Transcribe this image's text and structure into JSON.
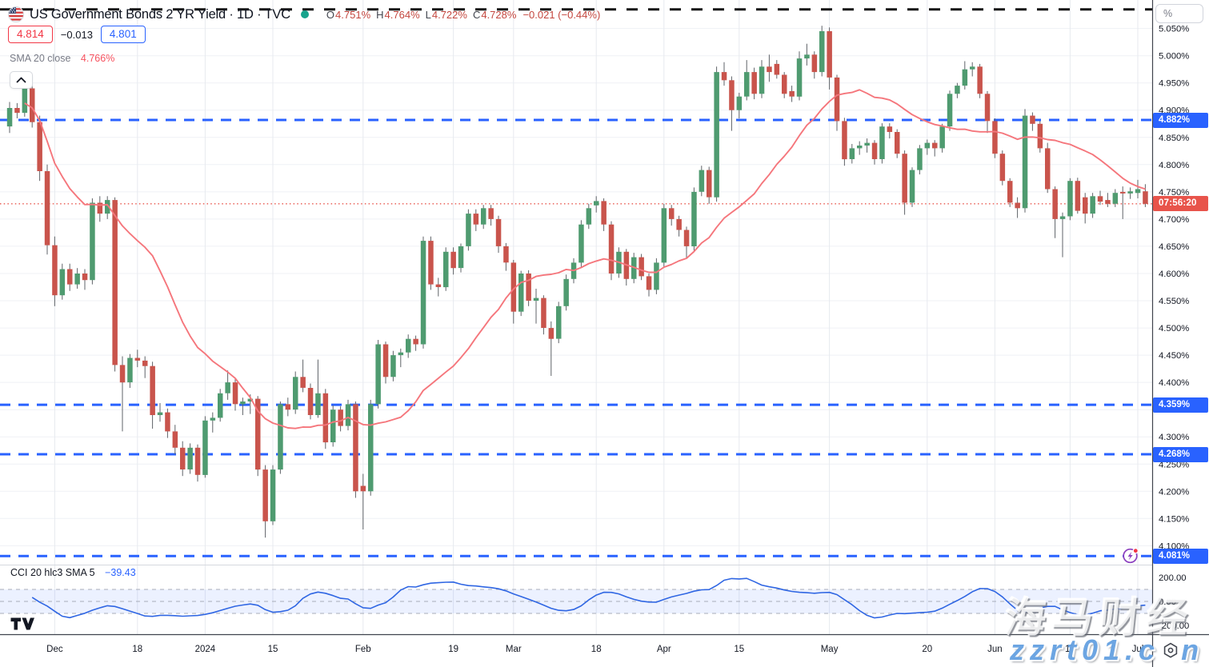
{
  "header": {
    "symbol_title": "US Government Bonds 2 YR Yield · 1D · TVC",
    "status_dot_color": "#18A38C",
    "ohlc": {
      "o_label": "O",
      "o_value": "4.751%",
      "h_label": "H",
      "h_value": "4.764%",
      "l_label": "L",
      "l_value": "4.722%",
      "c_label": "C",
      "c_value": "4.728%",
      "change": "−0.021 (−0.44%)"
    },
    "bid": "4.814",
    "bid_change": "−0.013",
    "ask": "4.801",
    "sma_legend": {
      "name": "SMA 20 close",
      "value": "4.766%"
    }
  },
  "cci_legend": {
    "name": "CCI 20 hlc3 SMA 5",
    "value": "−39.43"
  },
  "axis": {
    "unit_button": "%",
    "price_ticks": [
      "5.050%",
      "5.000%",
      "4.950%",
      "4.900%",
      "4.850%",
      "4.800%",
      "4.750%",
      "4.700%",
      "4.650%",
      "4.600%",
      "4.550%",
      "4.500%",
      "4.450%",
      "4.400%",
      "4.350%",
      "4.300%",
      "4.250%",
      "4.200%",
      "4.150%",
      "4.100%"
    ],
    "countdown": {
      "text": "07:56:20",
      "price": 4.728,
      "color": "#E8544B"
    }
  },
  "watermark": {
    "line1": "海马财经",
    "line2_prefix": "zzrt01.c",
    "line2_suffix": "n"
  },
  "colors": {
    "up": "#4F9B70",
    "down": "#C9544C",
    "wick": "#5F6368",
    "sma": "#F5767C",
    "cci": "#2F66E3",
    "level_blue": "#2962FF",
    "black_level": "#151515",
    "price_dotted": "#E8544B",
    "grid_h": "#EFF1F5",
    "grid_v": "#E7EAEF",
    "axis_border": "#3F434D",
    "pane_sep": "#D5D8DF",
    "axis_text": "#131722",
    "band_fill": "rgba(41,98,255,0.09)",
    "band_line": "#A9ADB8",
    "badge_blue": "#2962FF",
    "badge_countdown": "#E8544B"
  },
  "chart_data": {
    "type": "candlestick",
    "title": "US Government Bonds 2 YR Yield",
    "interval": "1D",
    "exchange": "TVC",
    "unit": "percent_yield",
    "visible_price_range": [
      4.08,
      5.09
    ],
    "levels": {
      "blue_dashed": [
        {
          "label": "4.882%",
          "value": 4.882
        },
        {
          "label": "4.359%",
          "value": 4.359
        },
        {
          "label": "4.268%",
          "value": 4.268
        },
        {
          "label": "4.081%",
          "value": 4.081
        }
      ],
      "black_dashed": 5.085,
      "current_price_dotted": 4.728
    },
    "overlays": [
      {
        "name": "SMA 20 close",
        "period": 20,
        "last_value": 4.766
      }
    ],
    "lower_pane": {
      "name": "CCI 20 hlc3 SMA 5",
      "cci_period": 20,
      "source": "hlc3",
      "smoothing": 5,
      "band": [
        -100,
        100
      ],
      "last_value": -39.43,
      "axis_ticks": [
        {
          "label": "200.00",
          "value": 200
        },
        {
          "label": "0.00",
          "value": 0
        },
        {
          "label": "-200.00",
          "value": -200
        }
      ]
    },
    "time_ticks": [
      {
        "i": 6,
        "label": "Dec"
      },
      {
        "i": 17,
        "label": "18"
      },
      {
        "i": 26,
        "label": "2024"
      },
      {
        "i": 35,
        "label": "15"
      },
      {
        "i": 47,
        "label": "Feb"
      },
      {
        "i": 59,
        "label": "19"
      },
      {
        "i": 67,
        "label": "Mar"
      },
      {
        "i": 78,
        "label": "18"
      },
      {
        "i": 87,
        "label": "Apr"
      },
      {
        "i": 97,
        "label": "15"
      },
      {
        "i": 109,
        "label": "May"
      },
      {
        "i": 122,
        "label": "20"
      },
      {
        "i": 131,
        "label": "Jun"
      },
      {
        "i": 141,
        "label": "17"
      },
      {
        "i": 150,
        "label": "Jul"
      }
    ],
    "candles": [
      [
        4.87,
        4.915,
        4.858,
        4.904
      ],
      [
        4.904,
        4.913,
        4.885,
        4.895
      ],
      [
        4.895,
        4.952,
        4.888,
        4.94
      ],
      [
        4.94,
        4.949,
        4.868,
        4.878
      ],
      [
        4.878,
        4.89,
        4.77,
        4.788
      ],
      [
        4.788,
        4.8,
        4.635,
        4.652
      ],
      [
        4.652,
        4.668,
        4.54,
        4.56
      ],
      [
        4.56,
        4.618,
        4.552,
        4.608
      ],
      [
        4.608,
        4.618,
        4.568,
        4.58
      ],
      [
        4.58,
        4.61,
        4.572,
        4.6
      ],
      [
        4.6,
        4.608,
        4.57,
        4.588
      ],
      [
        4.588,
        4.738,
        4.58,
        4.73
      ],
      [
        4.73,
        4.742,
        4.695,
        4.71
      ],
      [
        4.71,
        4.742,
        4.7,
        4.735
      ],
      [
        4.735,
        4.74,
        4.42,
        4.432
      ],
      [
        4.432,
        4.448,
        4.31,
        4.4
      ],
      [
        4.4,
        4.452,
        4.39,
        4.445
      ],
      [
        4.445,
        4.46,
        4.428,
        4.44
      ],
      [
        4.44,
        4.448,
        4.408,
        4.43
      ],
      [
        4.43,
        4.438,
        4.315,
        4.34
      ],
      [
        4.34,
        4.362,
        4.328,
        4.345
      ],
      [
        4.345,
        4.352,
        4.298,
        4.31
      ],
      [
        4.31,
        4.322,
        4.268,
        4.28
      ],
      [
        4.28,
        4.292,
        4.228,
        4.24
      ],
      [
        4.24,
        4.288,
        4.232,
        4.28
      ],
      [
        4.28,
        4.286,
        4.218,
        4.23
      ],
      [
        4.23,
        4.338,
        4.225,
        4.33
      ],
      [
        4.33,
        4.345,
        4.308,
        4.335
      ],
      [
        4.335,
        4.388,
        4.328,
        4.38
      ],
      [
        4.38,
        4.422,
        4.368,
        4.4
      ],
      [
        4.4,
        4.408,
        4.348,
        4.36
      ],
      [
        4.36,
        4.372,
        4.34,
        4.365
      ],
      [
        4.365,
        4.378,
        4.342,
        4.37
      ],
      [
        4.37,
        4.375,
        4.228,
        4.24
      ],
      [
        4.24,
        4.248,
        4.115,
        4.145
      ],
      [
        4.145,
        4.248,
        4.138,
        4.24
      ],
      [
        4.24,
        4.365,
        4.232,
        4.36
      ],
      [
        4.36,
        4.372,
        4.338,
        4.35
      ],
      [
        4.35,
        4.42,
        4.342,
        4.41
      ],
      [
        4.41,
        4.442,
        4.382,
        4.39
      ],
      [
        4.39,
        4.398,
        4.332,
        4.34
      ],
      [
        4.34,
        4.442,
        4.335,
        4.38
      ],
      [
        4.38,
        4.388,
        4.278,
        4.29
      ],
      [
        4.29,
        4.358,
        4.282,
        4.35
      ],
      [
        4.35,
        4.356,
        4.31,
        4.32
      ],
      [
        4.32,
        4.368,
        4.312,
        4.36
      ],
      [
        4.36,
        4.365,
        4.188,
        4.2
      ],
      [
        4.21,
        4.232,
        4.13,
        4.2
      ],
      [
        4.2,
        4.368,
        4.192,
        4.36
      ],
      [
        4.36,
        4.478,
        4.352,
        4.47
      ],
      [
        4.47,
        4.475,
        4.398,
        4.41
      ],
      [
        4.41,
        4.458,
        4.402,
        4.45
      ],
      [
        4.45,
        4.462,
        4.428,
        4.455
      ],
      [
        4.455,
        4.488,
        4.445,
        4.48
      ],
      [
        4.48,
        4.486,
        4.458,
        4.47
      ],
      [
        4.47,
        4.668,
        4.462,
        4.66
      ],
      [
        4.66,
        4.668,
        4.57,
        4.58
      ],
      [
        4.58,
        4.592,
        4.558,
        4.575
      ],
      [
        4.575,
        4.648,
        4.568,
        4.64
      ],
      [
        4.64,
        4.648,
        4.598,
        4.61
      ],
      [
        4.61,
        4.655,
        4.602,
        4.65
      ],
      [
        4.65,
        4.718,
        4.642,
        4.71
      ],
      [
        4.71,
        4.718,
        4.678,
        4.69
      ],
      [
        4.69,
        4.726,
        4.682,
        4.72
      ],
      [
        4.72,
        4.726,
        4.688,
        4.7
      ],
      [
        4.7,
        4.706,
        4.638,
        4.65
      ],
      [
        4.65,
        4.656,
        4.605,
        4.62
      ],
      [
        4.62,
        4.625,
        4.508,
        4.53
      ],
      [
        4.53,
        4.605,
        4.522,
        4.6
      ],
      [
        4.6,
        4.606,
        4.54,
        4.55
      ],
      [
        4.55,
        4.572,
        4.508,
        4.555
      ],
      [
        4.555,
        4.56,
        4.488,
        4.5
      ],
      [
        4.5,
        4.512,
        4.412,
        4.48
      ],
      [
        4.48,
        4.548,
        4.472,
        4.54
      ],
      [
        4.54,
        4.598,
        4.532,
        4.59
      ],
      [
        4.59,
        4.628,
        4.582,
        4.62
      ],
      [
        4.62,
        4.698,
        4.612,
        4.69
      ],
      [
        4.69,
        4.728,
        4.682,
        4.72
      ],
      [
        4.725,
        4.742,
        4.712,
        4.733
      ],
      [
        4.733,
        4.738,
        4.678,
        4.69
      ],
      [
        4.69,
        4.696,
        4.588,
        4.6
      ],
      [
        4.6,
        4.648,
        4.592,
        4.64
      ],
      [
        4.64,
        4.645,
        4.578,
        4.59
      ],
      [
        4.59,
        4.638,
        4.582,
        4.63
      ],
      [
        4.63,
        4.636,
        4.588,
        4.595
      ],
      [
        4.595,
        4.6,
        4.558,
        4.57
      ],
      [
        4.57,
        4.628,
        4.562,
        4.62
      ],
      [
        4.62,
        4.728,
        4.612,
        4.72
      ],
      [
        4.72,
        4.726,
        4.688,
        4.7
      ],
      [
        4.7,
        4.706,
        4.668,
        4.68
      ],
      [
        4.68,
        4.686,
        4.628,
        4.65
      ],
      [
        4.65,
        4.758,
        4.642,
        4.75
      ],
      [
        4.75,
        4.798,
        4.742,
        4.79
      ],
      [
        4.79,
        4.796,
        4.728,
        4.74
      ],
      [
        4.74,
        4.98,
        4.732,
        4.97
      ],
      [
        4.97,
        4.988,
        4.945,
        4.955
      ],
      [
        4.955,
        4.962,
        4.862,
        4.9
      ],
      [
        4.9,
        4.932,
        4.885,
        4.925
      ],
      [
        4.925,
        4.992,
        4.918,
        4.97
      ],
      [
        4.97,
        4.978,
        4.92,
        4.93
      ],
      [
        4.93,
        4.992,
        4.922,
        4.98
      ],
      [
        4.98,
        5.002,
        4.952,
        4.97
      ],
      [
        4.985,
        4.992,
        4.958,
        4.965
      ],
      [
        4.965,
        4.97,
        4.922,
        4.93
      ],
      [
        4.935,
        4.945,
        4.915,
        4.925
      ],
      [
        4.925,
        5.008,
        4.918,
        4.995
      ],
      [
        4.995,
        5.022,
        4.982,
        5.002
      ],
      [
        5.002,
        5.008,
        4.958,
        4.97
      ],
      [
        4.97,
        5.055,
        4.962,
        5.045
      ],
      [
        5.045,
        5.052,
        4.938,
        4.96
      ],
      [
        4.96,
        4.965,
        4.862,
        4.88
      ],
      [
        4.88,
        4.886,
        4.798,
        4.81
      ],
      [
        4.81,
        4.838,
        4.802,
        4.83
      ],
      [
        4.83,
        4.843,
        4.818,
        4.835
      ],
      [
        4.835,
        4.848,
        4.822,
        4.84
      ],
      [
        4.84,
        4.845,
        4.8,
        4.81
      ],
      [
        4.81,
        4.876,
        4.802,
        4.87
      ],
      [
        4.87,
        4.876,
        4.848,
        4.86
      ],
      [
        4.86,
        4.865,
        4.812,
        4.82
      ],
      [
        4.82,
        4.826,
        4.708,
        4.73
      ],
      [
        4.73,
        4.795,
        4.722,
        4.79
      ],
      [
        4.79,
        4.836,
        4.782,
        4.83
      ],
      [
        4.83,
        4.846,
        4.818,
        4.84
      ],
      [
        4.84,
        4.845,
        4.815,
        4.83
      ],
      [
        4.83,
        4.875,
        4.822,
        4.87
      ],
      [
        4.87,
        4.936,
        4.862,
        4.93
      ],
      [
        4.93,
        4.95,
        4.922,
        4.945
      ],
      [
        4.945,
        4.99,
        4.938,
        4.975
      ],
      [
        4.975,
        4.988,
        4.962,
        4.98
      ],
      [
        4.98,
        4.985,
        4.922,
        4.93
      ],
      [
        4.93,
        4.935,
        4.858,
        4.88
      ],
      [
        4.88,
        4.885,
        4.812,
        4.82
      ],
      [
        4.82,
        4.826,
        4.762,
        4.77
      ],
      [
        4.77,
        4.775,
        4.722,
        4.73
      ],
      [
        4.73,
        4.74,
        4.702,
        4.72
      ],
      [
        4.72,
        4.902,
        4.712,
        4.89
      ],
      [
        4.89,
        4.896,
        4.862,
        4.875
      ],
      [
        4.875,
        4.88,
        4.822,
        4.83
      ],
      [
        4.83,
        4.84,
        4.748,
        4.755
      ],
      [
        4.755,
        4.76,
        4.665,
        4.7
      ],
      [
        4.7,
        4.712,
        4.63,
        4.705
      ],
      [
        4.705,
        4.775,
        4.698,
        4.77
      ],
      [
        4.77,
        4.776,
        4.71,
        4.715
      ],
      [
        4.74,
        4.748,
        4.692,
        4.71
      ],
      [
        4.71,
        4.748,
        4.702,
        4.742
      ],
      [
        4.742,
        4.752,
        4.726,
        4.732
      ],
      [
        4.735,
        4.748,
        4.722,
        4.728
      ],
      [
        4.728,
        4.755,
        4.722,
        4.748
      ],
      [
        4.75,
        4.76,
        4.7,
        4.747
      ],
      [
        4.747,
        4.758,
        4.737,
        4.751
      ],
      [
        4.748,
        4.772,
        4.738,
        4.755
      ],
      [
        4.751,
        4.764,
        4.722,
        4.728
      ]
    ]
  }
}
